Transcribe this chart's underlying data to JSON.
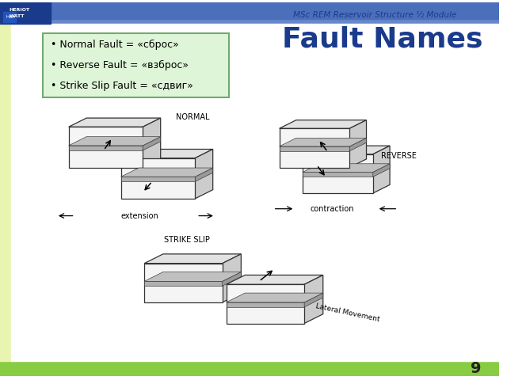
{
  "title": "Fault Names",
  "title_color": "#1a3a8c",
  "title_fontsize": 26,
  "header_text": "MSc REM Reservoir Structure ½ Module",
  "header_color": "#1a3a8c",
  "bullet_items": [
    "Normal Fault = «сброс»",
    "Reverse Fault = «взброс»",
    "Strike Slip Fault = «сдвиг»"
  ],
  "bullet_box_facecolor": "#dff5d8",
  "bullet_box_edgecolor": "#70aa70",
  "page_number": "9",
  "bg_color": "#ffffff",
  "left_bar_color": "#e8f5b0",
  "bottom_bar_color": "#88cc44",
  "top_bar_color": "#4b6fba",
  "block_face": "#f5f5f5",
  "block_top": "#e2e2e2",
  "block_right": "#cccccc",
  "block_stripe_front": "#b0b0b0",
  "block_stripe_right": "#999999",
  "block_stripe_top": "#c0c0c0",
  "block_edge": "#333333",
  "label_fontsize": 7,
  "label_color": "#000000"
}
